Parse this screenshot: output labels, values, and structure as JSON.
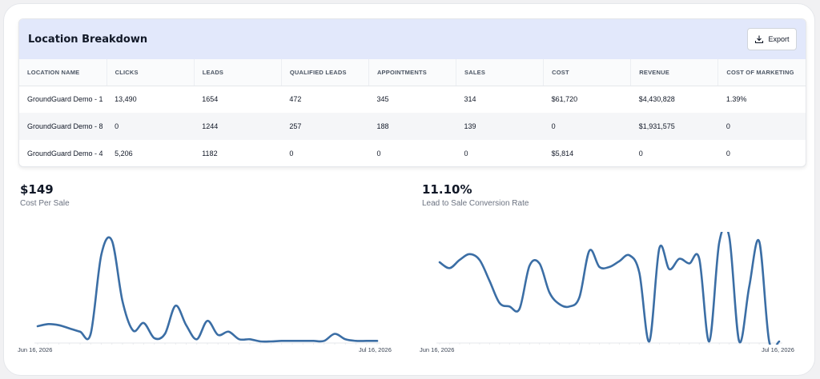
{
  "panel": {
    "title": "Location Breakdown",
    "export_label": "Export",
    "columns": [
      "LOCATION NAME",
      "CLICKS",
      "LEADS",
      "QUALIFIED LEADS",
      "APPOINTMENTS",
      "SALES",
      "COST",
      "REVENUE",
      "COST OF MARKETING"
    ],
    "rows": [
      [
        "GroundGuard Demo - 1",
        "13,490",
        "1654",
        "472",
        "345",
        "314",
        "$61,720",
        "$4,430,828",
        "1.39%"
      ],
      [
        "GroundGuard Demo - 8",
        "0",
        "1244",
        "257",
        "188",
        "139",
        "0",
        "$1,931,575",
        "0"
      ],
      [
        "GroundGuard Demo - 4",
        "5,206",
        "1182",
        "0",
        "0",
        "0",
        "$5,814",
        "0",
        "0"
      ]
    ]
  },
  "metrics": {
    "cost_per_sale": {
      "value": "$149",
      "label": "Cost Per Sale"
    },
    "conversion": {
      "value": "11.10%",
      "label": "Lead to Sale Conversion Rate"
    }
  },
  "chart_data": [
    {
      "type": "line",
      "x_start": "Jun 16, 2026",
      "x_end": "Jul 16, 2026",
      "color": "#3b6ea5",
      "values": [
        14,
        16,
        15,
        12,
        9,
        7,
        80,
        93,
        37,
        10,
        17,
        3,
        7,
        33,
        15,
        2,
        19,
        6,
        9,
        2,
        2,
        0,
        0,
        0.5,
        0.5,
        0.5,
        0.5,
        0.5,
        7,
        2,
        0.5,
        0.5,
        0.5
      ]
    },
    {
      "type": "line",
      "x_start": "Jun 16, 2026",
      "x_end": "Jul 16, 2026",
      "color": "#3b6ea5",
      "values": [
        68,
        63,
        70,
        75,
        70,
        52,
        33,
        30,
        28,
        65,
        67,
        42,
        32,
        30,
        38,
        78,
        64,
        64,
        69,
        74,
        59,
        0,
        80,
        62,
        71,
        67,
        71,
        0,
        85,
        90,
        0,
        47,
        86,
        0,
        0
      ]
    }
  ]
}
